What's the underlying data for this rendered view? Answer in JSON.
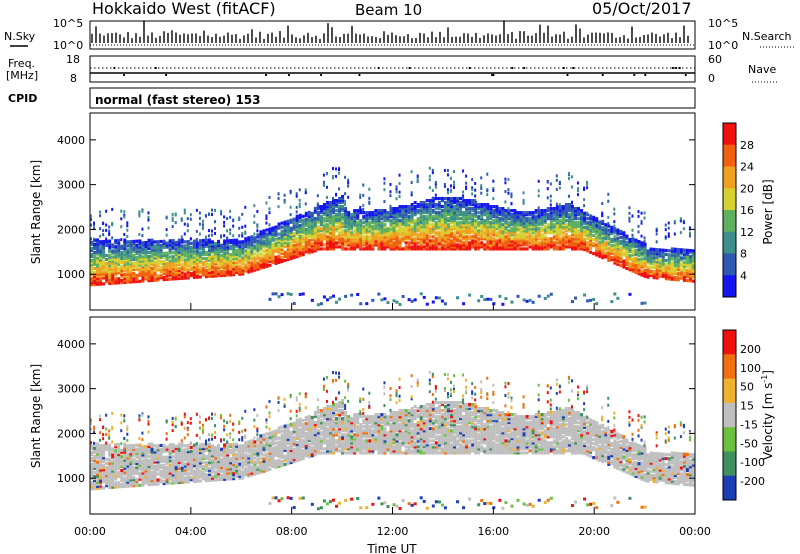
{
  "header": {
    "title": "Hokkaido West (fitACF)",
    "beam": "Beam 10",
    "date": "05/Oct/2017"
  },
  "top_panels": {
    "nsky_label": "N.Sky",
    "nsearch_label": "N.Search",
    "freq_label_1": "Freq.",
    "freq_label_2": "[MHz]",
    "nave_label": "Nave",
    "cpid_label": "CPID",
    "cpid_value": "normal (fast stereo) 153",
    "left_ticks_noise": [
      "10^5",
      "10^0"
    ],
    "right_ticks_noise": [
      "10^5",
      "10^0"
    ],
    "left_ticks_freq": [
      "18",
      "8"
    ],
    "right_ticks_nave": [
      "60",
      "0"
    ]
  },
  "chart_data": [
    {
      "type": "heatmap",
      "name": "power",
      "ylabel": "Slant Range [km]",
      "ylim": [
        200,
        4600
      ],
      "yticks": [
        "1000",
        "2000",
        "3000",
        "4000"
      ],
      "colorbar_label": "Power [dB]",
      "colorbar_ticks": [
        "4",
        "8",
        "12",
        "16",
        "20",
        "24",
        "28"
      ],
      "colors": [
        "#1515f0",
        "#2f58b3",
        "#3e8f8c",
        "#5fb15f",
        "#d8d030",
        "#f0a020",
        "#f06010",
        "#f01010"
      ]
    },
    {
      "type": "heatmap",
      "name": "velocity",
      "ylabel": "Slant Range [km]",
      "ylim": [
        200,
        4600
      ],
      "yticks": [
        "1000",
        "2000",
        "3000",
        "4000"
      ],
      "colorbar_label": "Velocity [m s",
      "colorbar_sup": "-1",
      "colorbar_close": "]",
      "colorbar_ticks": [
        "200",
        "100",
        "50",
        "15",
        "-15",
        "-50",
        "-100",
        "-200"
      ],
      "colors": [
        "#1c3fb8",
        "#3f8f5f",
        "#6cc040",
        "#bfbfbf",
        "#f0b030",
        "#f07010",
        "#f01010"
      ],
      "xlabel": "Time UT",
      "xticks": [
        "00:00",
        "04:00",
        "08:00",
        "12:00",
        "16:00",
        "20:00",
        "00:00"
      ],
      "xlim": [
        0,
        24
      ]
    }
  ]
}
